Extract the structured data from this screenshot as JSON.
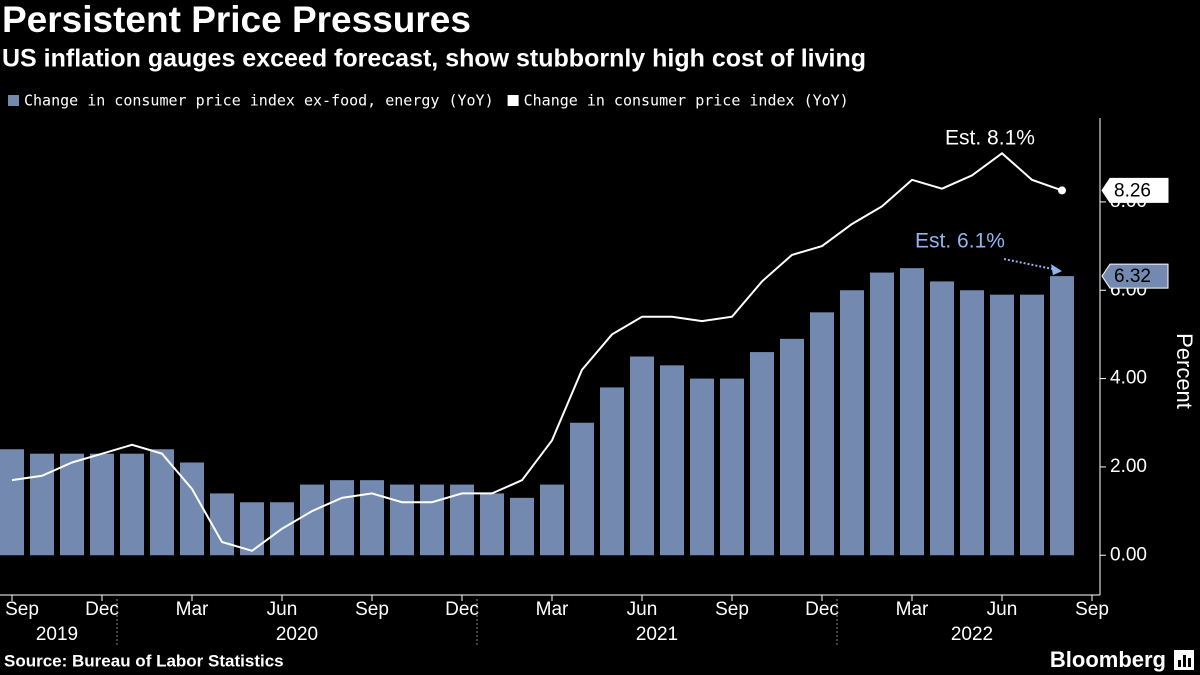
{
  "chart_data": {
    "type": "bar",
    "title": "Persistent Price Pressures",
    "subtitle": "US inflation gauges exceed forecast, show stubbornly high cost of living",
    "categories": [
      "2019-09",
      "2019-10",
      "2019-11",
      "2019-12",
      "2020-01",
      "2020-02",
      "2020-03",
      "2020-04",
      "2020-05",
      "2020-06",
      "2020-07",
      "2020-08",
      "2020-09",
      "2020-10",
      "2020-11",
      "2020-12",
      "2021-01",
      "2021-02",
      "2021-03",
      "2021-04",
      "2021-05",
      "2021-06",
      "2021-07",
      "2021-08",
      "2021-09",
      "2021-10",
      "2021-11",
      "2021-12",
      "2022-01",
      "2022-02",
      "2022-03",
      "2022-04",
      "2022-05",
      "2022-06",
      "2022-07",
      "2022-08"
    ],
    "series": [
      {
        "name": "Change in consumer price index ex-food, energy (YoY)",
        "type": "bar",
        "color": "#7389b0",
        "values": [
          2.4,
          2.3,
          2.3,
          2.3,
          2.3,
          2.4,
          2.1,
          1.4,
          1.2,
          1.2,
          1.6,
          1.7,
          1.7,
          1.6,
          1.6,
          1.6,
          1.4,
          1.3,
          1.6,
          3.0,
          3.8,
          4.5,
          4.3,
          4.0,
          4.0,
          4.6,
          4.9,
          5.5,
          6.0,
          6.4,
          6.5,
          6.2,
          6.0,
          5.9,
          5.9,
          6.32
        ]
      },
      {
        "name": "Change in consumer price index (YoY)",
        "type": "line",
        "color": "#ffffff",
        "values": [
          1.7,
          1.8,
          2.1,
          2.3,
          2.5,
          2.3,
          1.5,
          0.3,
          0.1,
          0.6,
          1.0,
          1.3,
          1.4,
          1.2,
          1.2,
          1.4,
          1.4,
          1.7,
          2.6,
          4.2,
          5.0,
          5.4,
          5.4,
          5.3,
          5.4,
          6.2,
          6.8,
          7.0,
          7.5,
          7.9,
          8.5,
          8.3,
          8.6,
          9.1,
          8.5,
          8.26
        ]
      }
    ],
    "annotations": [
      {
        "text": "Est. 8.1%",
        "color": "#ffffff"
      },
      {
        "text": "Est. 6.1%",
        "color": "#8fb4f0"
      }
    ],
    "ylabel": "Percent",
    "ylim": [
      -0.9,
      9.9
    ],
    "yticks": [
      {
        "value": 0,
        "label": "0.00"
      },
      {
        "value": 2,
        "label": "2.00"
      },
      {
        "value": 4,
        "label": "4.00"
      },
      {
        "value": 6,
        "label": "6.00"
      },
      {
        "value": 8,
        "label": "8.00"
      }
    ],
    "xticks": [
      {
        "value": "2019-09",
        "label": "Sep"
      },
      {
        "value": "2019-12",
        "label": "Dec"
      },
      {
        "value": "2020-03",
        "label": "Mar"
      },
      {
        "value": "2020-06",
        "label": "Jun"
      },
      {
        "value": "2020-09",
        "label": "Sep"
      },
      {
        "value": "2020-12",
        "label": "Dec"
      },
      {
        "value": "2021-03",
        "label": "Mar"
      },
      {
        "value": "2021-06",
        "label": "Jun"
      },
      {
        "value": "2021-09",
        "label": "Sep"
      },
      {
        "value": "2021-12",
        "label": "Dec"
      },
      {
        "value": "2022-03",
        "label": "Mar"
      },
      {
        "value": "2022-06",
        "label": "Jun"
      },
      {
        "value": "2022-09",
        "label": "Sep"
      }
    ],
    "xyears": [
      "2019",
      "2020",
      "2021",
      "2022"
    ],
    "source": "Source: Bureau of Labor Statistics",
    "brand": "Bloomberg"
  }
}
